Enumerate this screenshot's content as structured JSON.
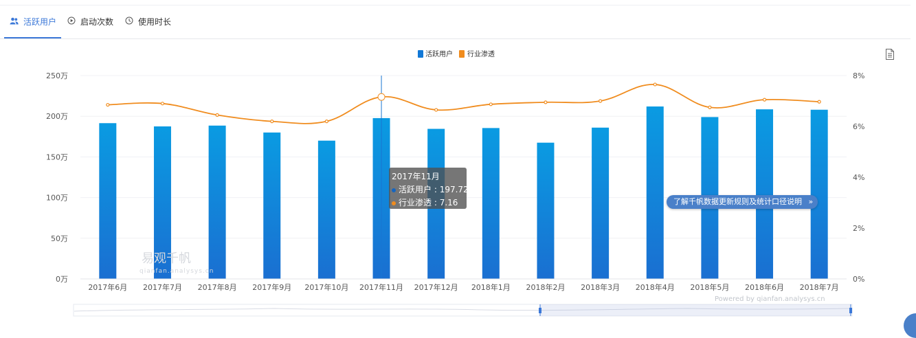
{
  "tabs": [
    {
      "label": "活跃用户",
      "icon": "users-icon",
      "active": true
    },
    {
      "label": "启动次数",
      "icon": "play-circle-icon",
      "active": false
    },
    {
      "label": "使用时长",
      "icon": "clock-icon",
      "active": false
    }
  ],
  "tooltip": {
    "title": "2017年11月",
    "rows": [
      {
        "label": "活跃用户",
        "value": "197.72",
        "color": "#1565c0"
      },
      {
        "label": "行业渗透",
        "value": "7.16",
        "color": "#f08c1e"
      }
    ]
  },
  "info_pill": {
    "label": "了解千帆数据更新规则及统计口径说明",
    "suffix": "»"
  },
  "powered_by": "Powered by qianfan.analysys.cn",
  "watermark": {
    "name": "易观千帆",
    "url": "qianfan.analysys.cn"
  },
  "colors": {
    "bar_top": "#0a9be2",
    "bar_bottom": "#1a6fd1",
    "line": "#f08c1e",
    "accent": "#3b78d8"
  },
  "chart_data": {
    "type": "bar",
    "categories": [
      "2017年6月",
      "2017年7月",
      "2017年8月",
      "2017年9月",
      "2017年10月",
      "2017年11月",
      "2017年12月",
      "2018年1月",
      "2018年2月",
      "2018年3月",
      "2018年4月",
      "2018年5月",
      "2018年6月",
      "2018年7月"
    ],
    "series": [
      {
        "name": "活跃用户",
        "type": "bar",
        "axis": "left",
        "values": [
          191.5,
          187.5,
          188.5,
          180,
          170,
          197.72,
          184.5,
          185.5,
          167.5,
          186,
          212,
          199,
          208.5,
          208
        ]
      },
      {
        "name": "行业渗透",
        "type": "line",
        "axis": "right",
        "values": [
          6.85,
          6.9,
          6.45,
          6.2,
          6.2,
          7.16,
          6.65,
          6.87,
          6.95,
          7.0,
          7.65,
          6.75,
          7.05,
          6.97
        ]
      }
    ],
    "y_left": {
      "ylim": [
        0,
        250
      ],
      "ticks": [
        0,
        50,
        100,
        150,
        200,
        250
      ],
      "tick_labels": [
        "0万",
        "50万",
        "100万",
        "150万",
        "200万",
        "250万"
      ]
    },
    "y_right": {
      "ylim": [
        0,
        8
      ],
      "ticks": [
        0,
        2,
        4,
        6,
        8
      ],
      "tick_labels": [
        "0%",
        "2%",
        "4%",
        "6%",
        "8%"
      ]
    },
    "legend": {
      "position": "top-center",
      "entries": [
        "活跃用户",
        "行业渗透"
      ]
    },
    "highlight_index": 5,
    "xlabel": "",
    "ylabel": "",
    "grid": true
  }
}
